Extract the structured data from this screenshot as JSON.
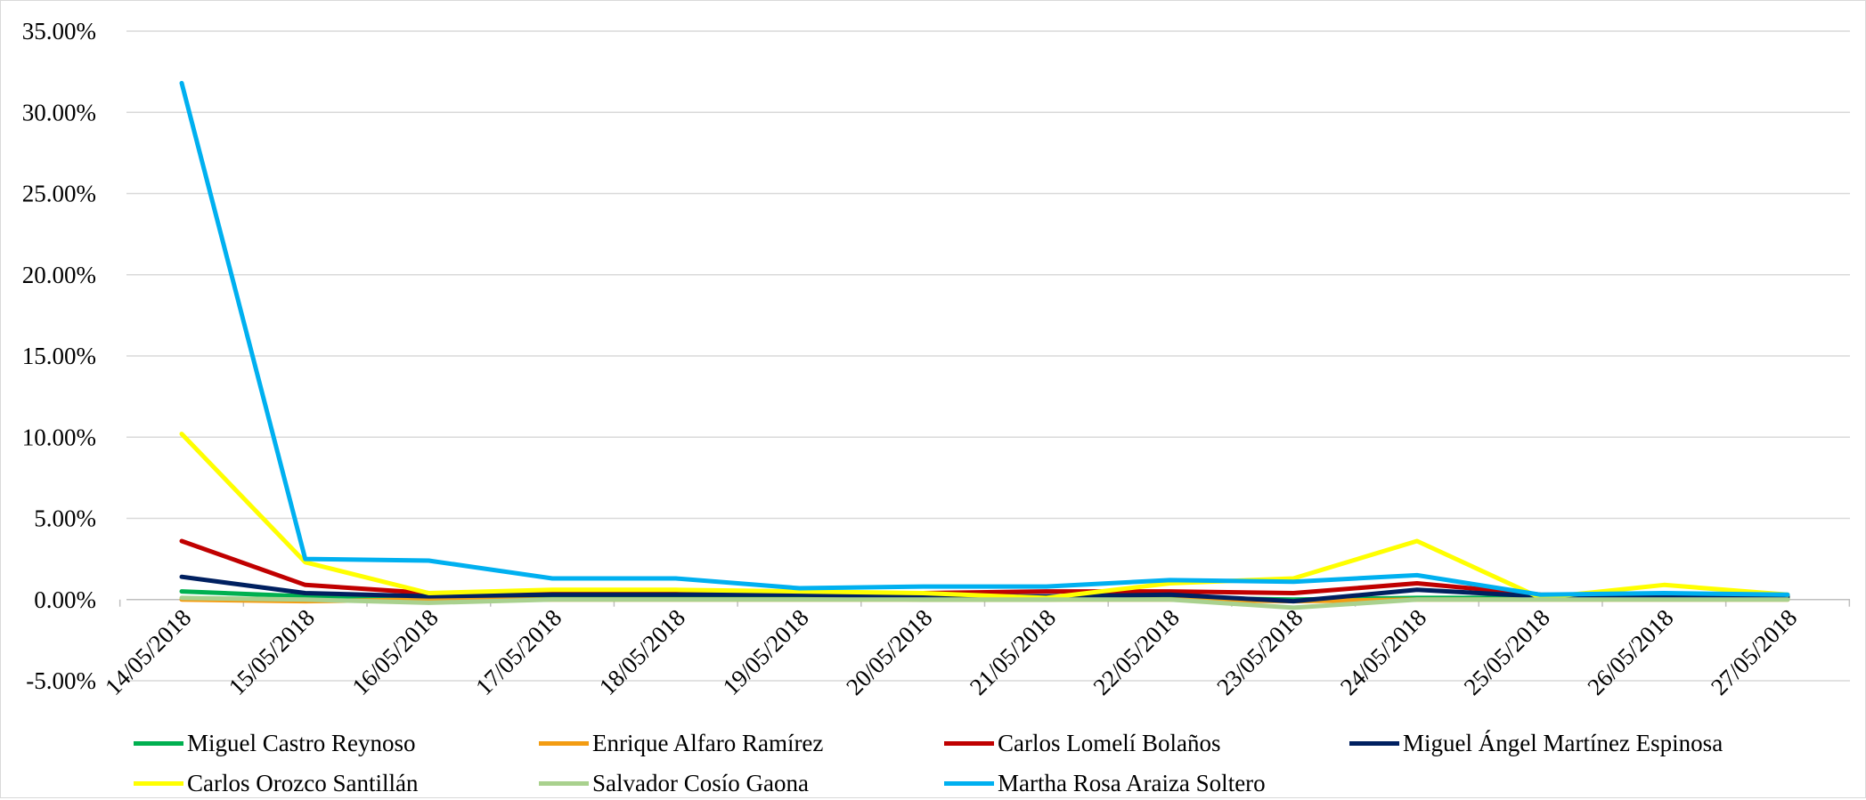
{
  "chart_data": {
    "type": "line",
    "categories": [
      "14/05/2018",
      "15/05/2018",
      "16/05/2018",
      "17/05/2018",
      "18/05/2018",
      "19/05/2018",
      "20/05/2018",
      "21/05/2018",
      "22/05/2018",
      "23/05/2018",
      "24/05/2018",
      "25/05/2018",
      "26/05/2018",
      "27/05/2018"
    ],
    "ylim": [
      -5,
      35
    ],
    "yticks": [
      -5,
      0,
      5,
      10,
      15,
      20,
      25,
      30,
      35
    ],
    "ytick_labels": [
      "-5.00%",
      "0.00%",
      "5.00%",
      "10.00%",
      "15.00%",
      "20.00%",
      "25.00%",
      "30.00%",
      "35.00%"
    ],
    "y_unit": "%",
    "grid": true,
    "legend_position": "bottom",
    "series": [
      {
        "name": "Miguel Castro Reynoso",
        "color": "#00b050",
        "values": [
          0.5,
          0.2,
          0.1,
          0.1,
          0.1,
          0.1,
          0.0,
          0.0,
          0.1,
          0.0,
          0.1,
          0.1,
          0.1,
          0.1
        ]
      },
      {
        "name": "Enrique Alfaro Ramírez",
        "color": "#f39c12",
        "values": [
          0.0,
          -0.1,
          0.0,
          0.0,
          0.0,
          0.0,
          0.0,
          0.0,
          0.0,
          -0.1,
          0.0,
          0.0,
          0.0,
          0.0
        ]
      },
      {
        "name": "Carlos Lomelí Bolaños",
        "color": "#c00000",
        "values": [
          3.6,
          0.9,
          0.4,
          0.4,
          0.4,
          0.4,
          0.4,
          0.5,
          0.5,
          0.4,
          1.0,
          0.3,
          0.2,
          0.2
        ]
      },
      {
        "name": "Miguel Ángel Martínez Espinosa",
        "color": "#002060",
        "values": [
          1.4,
          0.4,
          0.2,
          0.3,
          0.3,
          0.3,
          0.2,
          0.2,
          0.3,
          -0.1,
          0.6,
          0.2,
          0.2,
          0.2
        ]
      },
      {
        "name": "Carlos Orozco Santillán",
        "color": "#ffff00",
        "values": [
          10.2,
          2.3,
          0.4,
          0.6,
          0.6,
          0.5,
          0.4,
          0.1,
          1.0,
          1.3,
          3.6,
          0.1,
          0.9,
          0.3
        ]
      },
      {
        "name": "Salvador Cosío Gaona",
        "color": "#a9d18e",
        "values": [
          0.1,
          0.0,
          -0.2,
          0.0,
          0.0,
          0.0,
          0.0,
          0.0,
          0.0,
          -0.5,
          0.0,
          0.0,
          0.0,
          0.0
        ]
      },
      {
        "name": "Martha Rosa Araiza Soltero",
        "color": "#00b0f0",
        "values": [
          31.8,
          2.5,
          2.4,
          1.3,
          1.3,
          0.7,
          0.8,
          0.8,
          1.2,
          1.1,
          1.5,
          0.3,
          0.4,
          0.3
        ]
      }
    ]
  }
}
